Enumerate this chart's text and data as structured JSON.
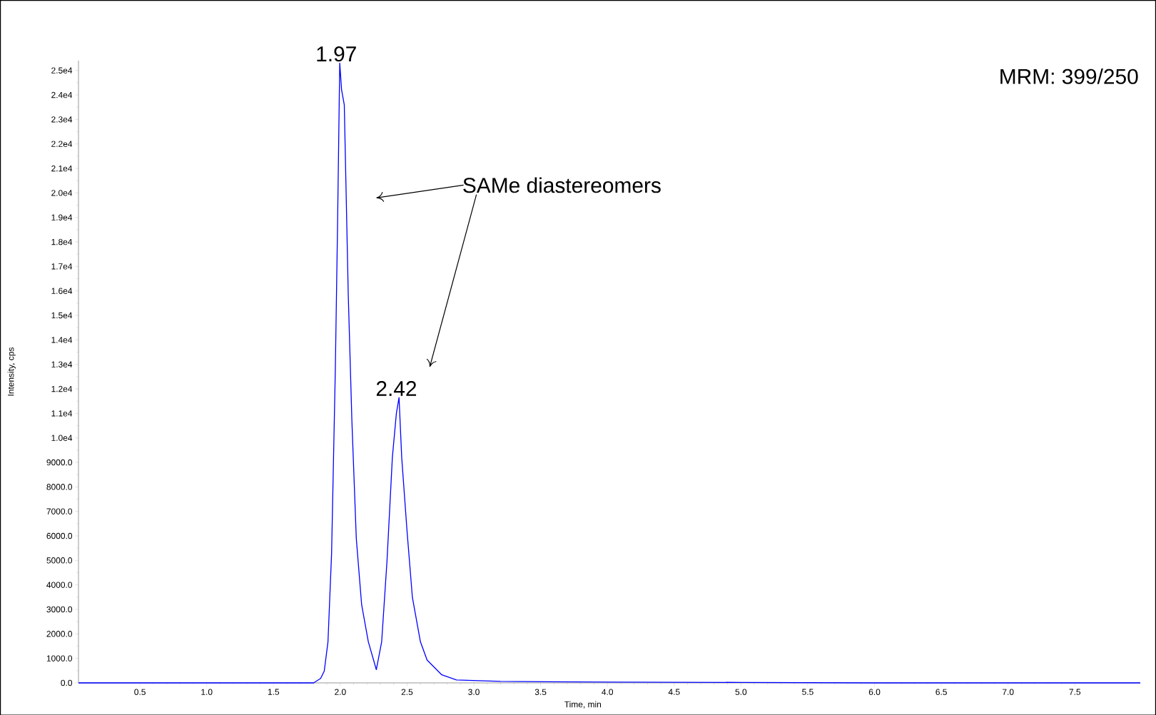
{
  "chart_data": {
    "type": "line",
    "xlabel": "Time, min",
    "ylabel": "Intensity, cps",
    "annotations": [
      {
        "text": "1.97",
        "x": 1.97,
        "y": 25300
      },
      {
        "text": "2.42",
        "x": 2.42,
        "y": 11650
      },
      "SAMe diastereomers",
      "MRM: 399/250"
    ],
    "x": [
      0.04,
      0.5,
      1.0,
      1.5,
      1.8,
      1.853,
      1.88,
      1.908,
      1.935,
      1.963,
      1.98,
      1.996,
      2.01,
      2.03,
      2.06,
      2.087,
      2.12,
      2.16,
      2.21,
      2.27,
      2.31,
      2.35,
      2.39,
      2.42,
      2.44,
      2.46,
      2.5,
      2.54,
      2.6,
      2.65,
      2.76,
      2.87,
      3.2,
      4.0,
      5.0,
      6.0,
      7.0,
      7.99
    ],
    "values": [
      0,
      0,
      0,
      0,
      0,
      180,
      480,
      1680,
      5290,
      12800,
      18800,
      25300,
      24200,
      23600,
      15800,
      10700,
      5890,
      3190,
      1680,
      540,
      1680,
      4990,
      9200,
      11000,
      11650,
      9200,
      6190,
      3490,
      1680,
      930,
      330,
      120,
      60,
      30,
      20,
      0,
      0,
      0
    ],
    "color": "#0000ff",
    "xlim": [
      0.04,
      7.99
    ],
    "xticks": [
      {
        "value": 0.5,
        "label": "0.5"
      },
      {
        "value": 1.0,
        "label": "1.0"
      },
      {
        "value": 1.5,
        "label": "1.5"
      },
      {
        "value": 2.0,
        "label": "2.0"
      },
      {
        "value": 2.5,
        "label": "2.5"
      },
      {
        "value": 3.0,
        "label": "3.0"
      },
      {
        "value": 3.5,
        "label": "3.5"
      },
      {
        "value": 4.0,
        "label": "4.0"
      },
      {
        "value": 4.5,
        "label": "4.5"
      },
      {
        "value": 5.0,
        "label": "5.0"
      },
      {
        "value": 5.5,
        "label": "5.5"
      },
      {
        "value": 6.0,
        "label": "6.0"
      },
      {
        "value": 6.5,
        "label": "6.5"
      },
      {
        "value": 7.0,
        "label": "7.0"
      },
      {
        "value": 7.5,
        "label": "7.5"
      }
    ],
    "ylim": [
      0,
      25400
    ],
    "yticks": [
      {
        "value": 0,
        "label": "0.0"
      },
      {
        "value": 1000,
        "label": "1000.0"
      },
      {
        "value": 2000,
        "label": "2000.0"
      },
      {
        "value": 3000,
        "label": "3000.0"
      },
      {
        "value": 4000,
        "label": "4000.0"
      },
      {
        "value": 5000,
        "label": "5000.0"
      },
      {
        "value": 6000,
        "label": "6000.0"
      },
      {
        "value": 7000,
        "label": "7000.0"
      },
      {
        "value": 8000,
        "label": "8000.0"
      },
      {
        "value": 9000,
        "label": "9000.0"
      },
      {
        "value": 10000,
        "label": "1.0e4"
      },
      {
        "value": 11000,
        "label": "1.1e4"
      },
      {
        "value": 12000,
        "label": "1.2e4"
      },
      {
        "value": 13000,
        "label": "1.3e4"
      },
      {
        "value": 14000,
        "label": "1.4e4"
      },
      {
        "value": 15000,
        "label": "1.5e4"
      },
      {
        "value": 16000,
        "label": "1.6e4"
      },
      {
        "value": 17000,
        "label": "1.7e4"
      },
      {
        "value": 18000,
        "label": "1.8e4"
      },
      {
        "value": 19000,
        "label": "1.9e4"
      },
      {
        "value": 20000,
        "label": "2.0e4"
      },
      {
        "value": 21000,
        "label": "2.1e4"
      },
      {
        "value": 22000,
        "label": "2.2e4"
      },
      {
        "value": 23000,
        "label": "2.3e4"
      },
      {
        "value": 24000,
        "label": "2.4e4"
      },
      {
        "value": 25000,
        "label": "2.5e4"
      }
    ],
    "grid": false,
    "marker": "none",
    "line_style": "solid"
  }
}
